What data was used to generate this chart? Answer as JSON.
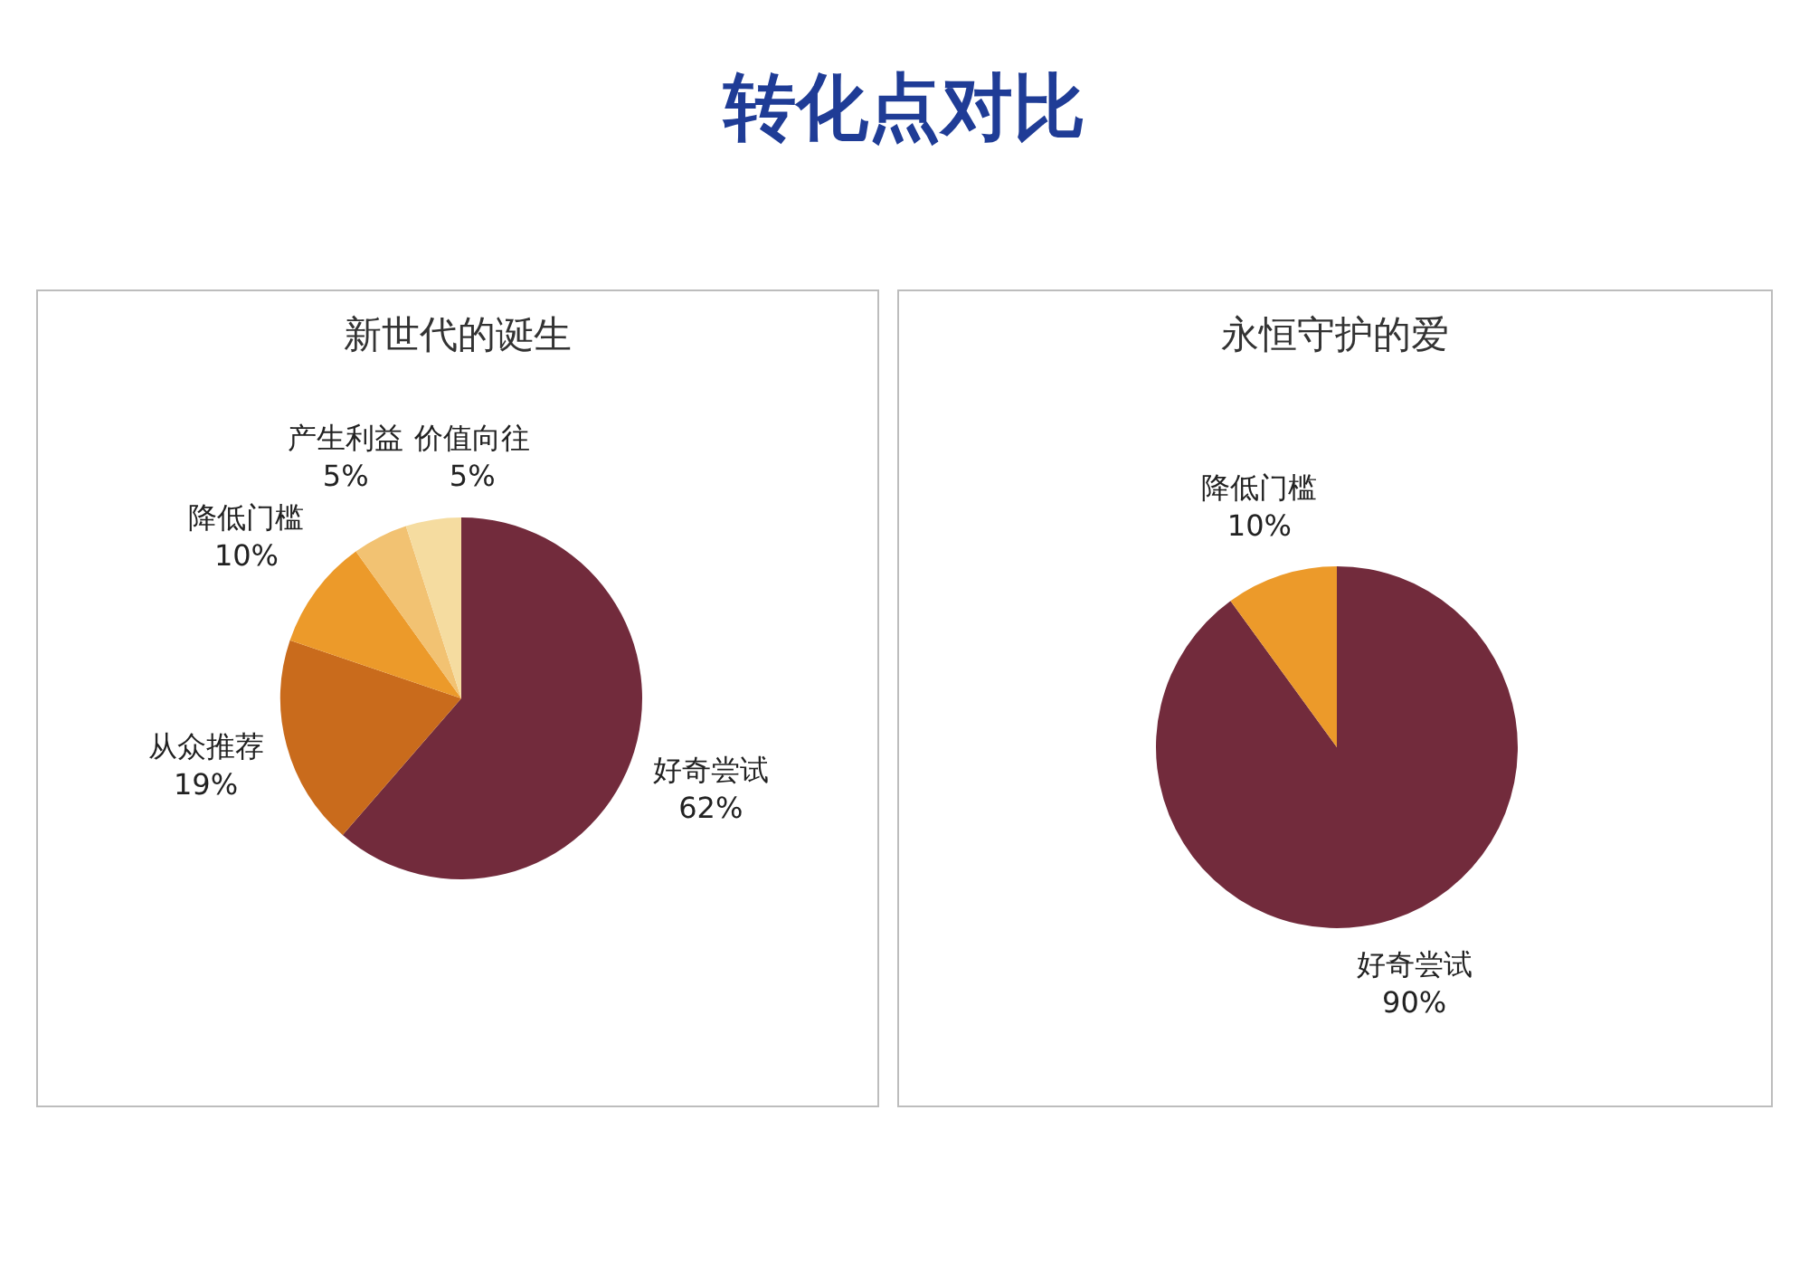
{
  "chart_data": [
    {
      "type": "pie",
      "title": "转化点对比",
      "subtitle": "新世代的诞生",
      "categories": [
        "好奇尝试",
        "从众推荐",
        "降低门槛",
        "产生利益",
        "价值向往"
      ],
      "values": [
        62,
        19,
        10,
        5,
        5
      ],
      "value_labels": [
        "62%",
        "19%",
        "10%",
        "5%",
        "5%"
      ],
      "colors": [
        "#722b3c",
        "#c96b1c",
        "#ec9a2a",
        "#f2c272",
        "#f5dca0"
      ],
      "legend": false
    },
    {
      "type": "pie",
      "subtitle": "永恒守护的爱",
      "categories": [
        "好奇尝试",
        "降低门槛"
      ],
      "values": [
        90,
        10
      ],
      "value_labels": [
        "90%",
        "10%"
      ],
      "colors": [
        "#722b3c",
        "#ec9a2a"
      ],
      "legend": false
    }
  ]
}
